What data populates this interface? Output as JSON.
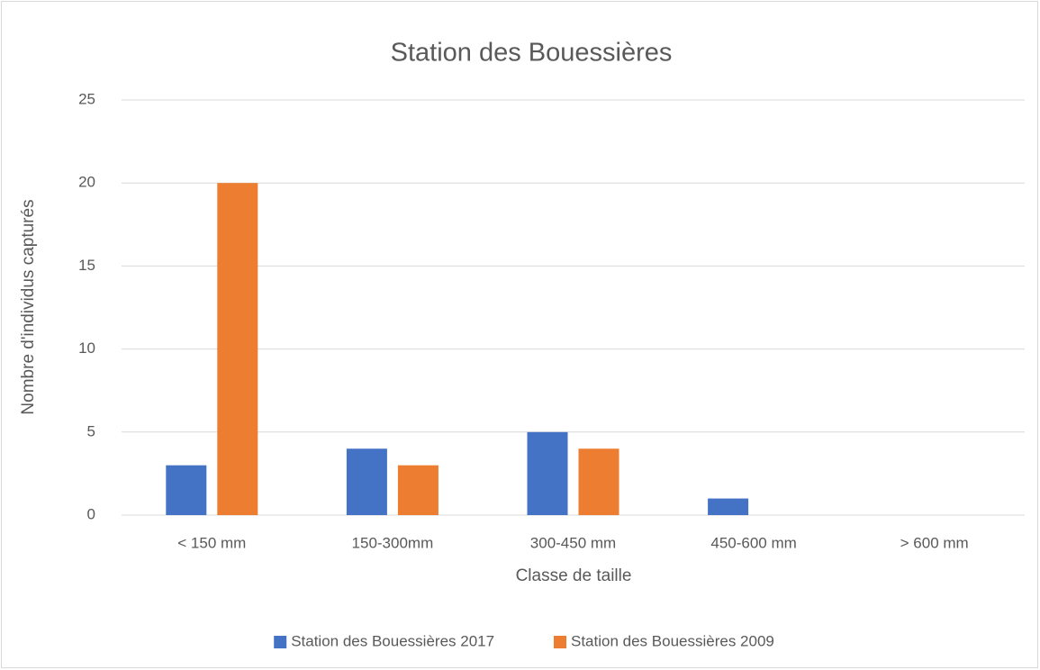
{
  "chart_data": {
    "type": "bar",
    "title": "Station des Bouessières",
    "x_label": "Classe de taille",
    "y_label": "Nombre d'individus capturés",
    "categories": [
      "< 150 mm",
      "150-300mm",
      "300-450 mm",
      "450-600 mm",
      "> 600 mm"
    ],
    "series": [
      {
        "name": "Station des Bouessières 2017",
        "color": "#4472c4",
        "values": [
          3,
          4,
          5,
          1,
          0
        ]
      },
      {
        "name": "Station des Bouessières 2009",
        "color": "#ed7d31",
        "values": [
          20,
          3,
          4,
          0,
          0
        ]
      }
    ],
    "ylim": [
      0,
      25
    ],
    "yticks": [
      0,
      5,
      10,
      15,
      20,
      25
    ],
    "grid": true,
    "legend": "bottom"
  }
}
